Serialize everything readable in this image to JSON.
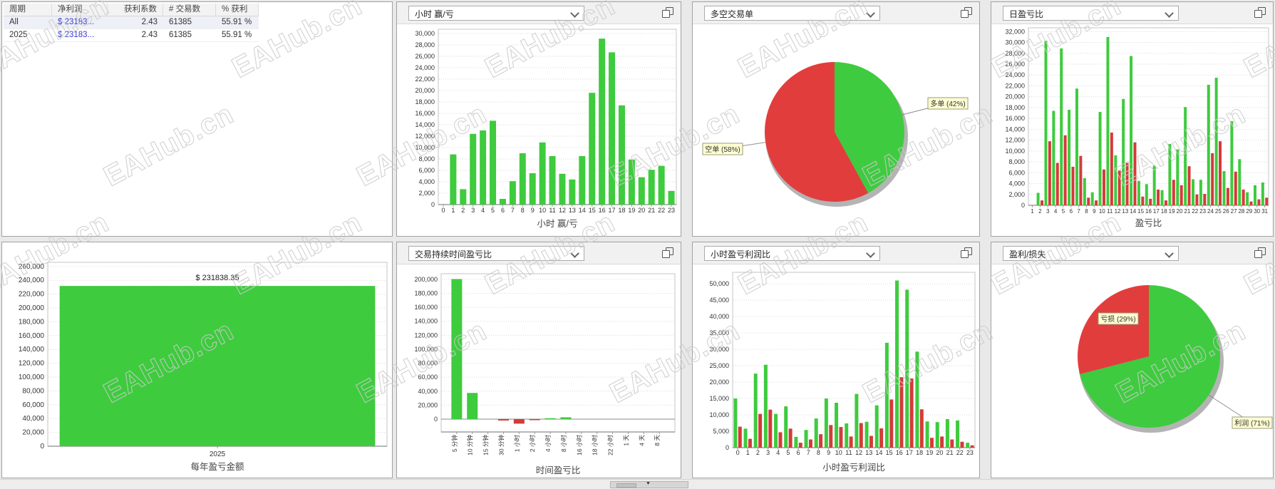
{
  "page": {
    "watermark_text": "EAHub.cn"
  },
  "colors": {
    "profit_green": "#3ecb3e",
    "loss_red": "#d23c38",
    "pie_green": "#3fcb3f",
    "pie_red": "#e23d3d",
    "net_profit_blue": "#3a3ace",
    "tag_bg": "#ffffd2",
    "tag_border": "#9b9b79"
  },
  "summary_table": {
    "columns": [
      "周期",
      "净利润",
      "获利系数",
      "# 交易数",
      "% 获利"
    ],
    "rows": [
      [
        "All",
        "$ 23183...",
        "2.43",
        "61385",
        "55.91 %"
      ],
      [
        "2025",
        "$ 23183...",
        "2.43",
        "61385",
        "55.91 %"
      ]
    ]
  },
  "chart_panels": [
    {
      "dropdown": "小时 赢/亏"
    },
    {
      "dropdown": "多空交易单"
    },
    {
      "dropdown": "日盈亏比"
    },
    {
      "dropdown": "交易持续时间盈亏比"
    },
    {
      "dropdown": "小时盈亏利润比"
    },
    {
      "dropdown": "盈利/损失"
    }
  ],
  "chart_data": [
    {
      "name": "hour-winloss",
      "type": "bar",
      "title": "小时 赢/亏",
      "categories": [
        0,
        1,
        2,
        3,
        4,
        5,
        6,
        7,
        8,
        9,
        10,
        11,
        12,
        13,
        14,
        15,
        16,
        17,
        18,
        19,
        20,
        21,
        22,
        23
      ],
      "values": [
        0,
        8800,
        2700,
        12400,
        13000,
        14700,
        1000,
        4100,
        9000,
        5500,
        10900,
        8500,
        5400,
        4400,
        8500,
        19600,
        29100,
        26700,
        17400,
        7900,
        4800,
        6100,
        6800,
        2400
      ],
      "xlabel": "小时 赢/亏",
      "ylabel": "",
      "ylim": [
        0,
        30000
      ],
      "ytick_step": 2000,
      "grid": true,
      "legend": "none"
    },
    {
      "name": "long-short",
      "type": "pie",
      "title": "多空交易单",
      "slices": [
        {
          "label": "多单 (42%)",
          "value": 42,
          "color": "#3fcb3f"
        },
        {
          "label": "空单 (58%)",
          "value": 58,
          "color": "#e23d3d"
        }
      ],
      "start_angle": "top",
      "direction": "clockwise"
    },
    {
      "name": "daily-pl",
      "type": "bar",
      "title": "盈亏比",
      "categories": [
        1,
        2,
        3,
        4,
        5,
        6,
        7,
        8,
        9,
        10,
        11,
        12,
        13,
        14,
        15,
        16,
        17,
        18,
        19,
        20,
        21,
        22,
        23,
        24,
        25,
        26,
        27,
        28,
        29,
        30,
        31
      ],
      "series": [
        {
          "name": "盈利",
          "color": "#3ecb3e",
          "values": [
            0,
            2300,
            30300,
            17400,
            28900,
            17600,
            21500,
            5000,
            2400,
            17200,
            31000,
            9200,
            19600,
            27500,
            4500,
            3900,
            7300,
            2800,
            11300,
            10300,
            18100,
            4800,
            4700,
            22200,
            23500,
            6300,
            15500,
            8500,
            2400,
            3700,
            4200
          ]
        },
        {
          "name": "亏损",
          "color": "#d23c38",
          "values": [
            0,
            900,
            11800,
            7800,
            12900,
            7100,
            9100,
            1400,
            900,
            6600,
            13400,
            6400,
            7800,
            11600,
            1600,
            1200,
            2900,
            900,
            4700,
            3700,
            7200,
            2000,
            2100,
            9600,
            11800,
            3200,
            6200,
            2900,
            700,
            1100,
            1400
          ]
        }
      ],
      "xlabel": "盈亏比",
      "ylabel": "",
      "ylim": [
        0,
        32000
      ],
      "ytick_step": 2000,
      "grid": true
    },
    {
      "name": "yearly-pl",
      "type": "bar",
      "title": "每年盈亏金额",
      "categories": [
        "2025"
      ],
      "values": [
        231838.35
      ],
      "value_labels": [
        "$ 231838.35"
      ],
      "xlabel": "每年盈亏金额",
      "ylabel": "",
      "ylim": [
        0,
        260000
      ],
      "ytick_step": 20000,
      "grid": true
    },
    {
      "name": "duration-pl",
      "type": "bar",
      "title": "时间盈亏比",
      "categories": [
        "5 分钟",
        "10 分钟",
        "15 分钟",
        "30 分钟",
        "1 小时",
        "2 小时",
        "4 小时",
        "8 小时",
        "16 小时",
        "18 小时",
        "22 小时",
        "1 天",
        "4 天",
        "8 天"
      ],
      "values": [
        200500,
        37500,
        0,
        -2000,
        -6500,
        -1500,
        1300,
        2600,
        0,
        0,
        0,
        0,
        0,
        0
      ],
      "xlabel": "时间盈亏比",
      "ylabel": "",
      "ylim": [
        -18000,
        208000
      ],
      "ytick_step": 20000,
      "grid": true,
      "x_labels_rotated": true
    },
    {
      "name": "hourly-pl-ratio",
      "type": "bar",
      "title": "小时盈亏利润比",
      "categories": [
        0,
        1,
        2,
        3,
        4,
        5,
        6,
        7,
        8,
        9,
        10,
        11,
        12,
        13,
        14,
        15,
        16,
        17,
        18,
        19,
        20,
        21,
        22,
        23
      ],
      "series": [
        {
          "name": "利润",
          "color": "#3ecb3e",
          "values": [
            15000,
            5800,
            22600,
            25300,
            10300,
            12600,
            3300,
            5400,
            8900,
            15000,
            13700,
            7400,
            16400,
            7900,
            12900,
            32000,
            51000,
            48200,
            29300,
            8000,
            7800,
            8700,
            8300,
            1500
          ]
        },
        {
          "name": "亏损",
          "color": "#d23c38",
          "values": [
            6400,
            2700,
            10300,
            11600,
            4700,
            5800,
            1500,
            2500,
            4100,
            6900,
            6300,
            3400,
            7500,
            3600,
            5900,
            14700,
            21500,
            21100,
            11700,
            3000,
            3400,
            2500,
            1800,
            700
          ]
        }
      ],
      "xlabel": "小时盈亏利润比",
      "ylabel": "",
      "ylim": [
        0,
        50000
      ],
      "ytick_step": 5000,
      "grid": true
    },
    {
      "name": "profit-loss",
      "type": "pie",
      "title": "盈利/损失",
      "slices": [
        {
          "label": "利润 (71%)",
          "value": 71,
          "color": "#3fcb3f"
        },
        {
          "label": "亏损 (29%)",
          "value": 29,
          "color": "#e23d3d"
        }
      ],
      "start_angle": "top",
      "direction": "clockwise"
    }
  ],
  "bottom_strip": {
    "note": ""
  }
}
